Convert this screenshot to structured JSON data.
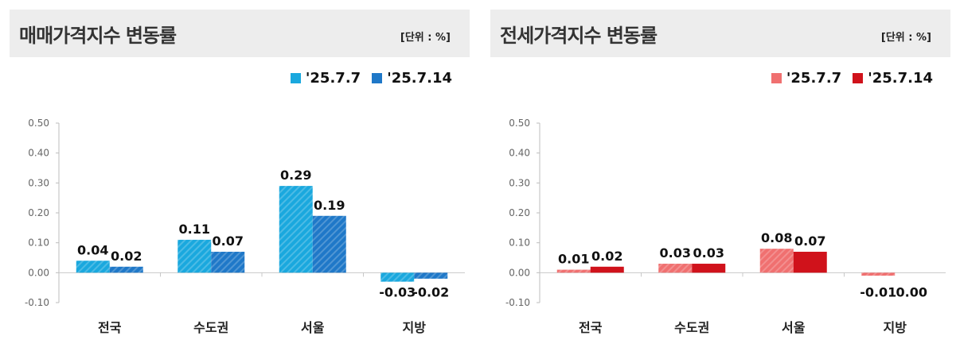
{
  "chart_data": [
    {
      "type": "bar",
      "title": "매매가격지수 변동률",
      "unit": "[단위 : %]",
      "categories": [
        "전국",
        "수도권",
        "서울",
        "지방"
      ],
      "series": [
        {
          "name": "'25.7.7",
          "values": [
            0.04,
            0.11,
            0.29,
            -0.03
          ],
          "labels": [
            "0.04",
            "0.11",
            "0.29",
            "-0.03"
          ],
          "color": "#1aa8de",
          "hatched": true
        },
        {
          "name": "'25.7.14",
          "values": [
            0.02,
            0.07,
            0.19,
            -0.02
          ],
          "labels": [
            "0.02",
            "0.07",
            "0.19",
            "-0.02"
          ],
          "color": "#1f78c8",
          "hatched": true
        }
      ],
      "ylim": [
        -0.1,
        0.5
      ],
      "yticks": [
        "0.50",
        "0.40",
        "0.30",
        "0.20",
        "0.10",
        "0.00",
        "-0.10"
      ],
      "legend": "top-right",
      "grid": false
    },
    {
      "type": "bar",
      "title": "전세가격지수 변동률",
      "unit": "[단위 : %]",
      "categories": [
        "전국",
        "수도권",
        "서울",
        "지방"
      ],
      "series": [
        {
          "name": "'25.7.7",
          "values": [
            0.01,
            0.03,
            0.08,
            -0.01
          ],
          "labels": [
            "0.01",
            "0.03",
            "0.08",
            "-0.01"
          ],
          "color": "#f07070",
          "hatched": true
        },
        {
          "name": "'25.7.14",
          "values": [
            0.02,
            0.03,
            0.07,
            0.0
          ],
          "labels": [
            "0.02",
            "0.03",
            "0.07",
            "0.00"
          ],
          "color": "#d0121b",
          "hatched": false
        }
      ],
      "ylim": [
        -0.1,
        0.5
      ],
      "yticks": [
        "0.50",
        "0.40",
        "0.30",
        "0.20",
        "0.10",
        "0.00",
        "-0.10"
      ],
      "legend": "top-right",
      "grid": false
    }
  ]
}
